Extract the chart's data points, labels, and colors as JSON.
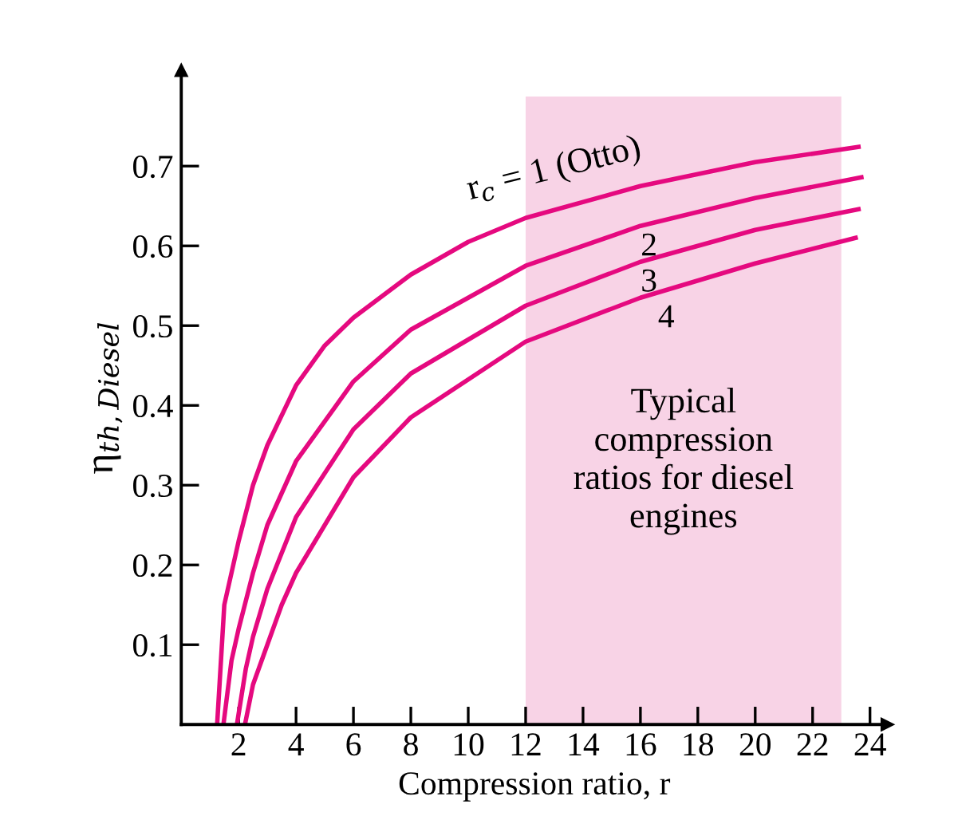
{
  "chart_data": {
    "type": "line",
    "xlabel": "Compression ratio, r",
    "ylabel": "η$_{th,Diesel}$",
    "xlim": [
      0,
      24.6
    ],
    "ylim": [
      0,
      0.82
    ],
    "xticks": [
      2,
      4,
      6,
      8,
      10,
      12,
      14,
      16,
      18,
      20,
      22,
      24
    ],
    "yticks": [
      0.1,
      0.2,
      0.3,
      0.4,
      0.5,
      0.6,
      0.7
    ],
    "grid": false,
    "legend": false,
    "marker": "none",
    "line_style": "solid",
    "bands": [
      {
        "axis": "x",
        "from": 12,
        "to": 23,
        "label": "Typical\ncompression\nratios for diesel\nengines",
        "color": "#f8d3e6"
      }
    ],
    "series": [
      {
        "name": "r$_{c}$ = 1 (Otto)",
        "color": "#e5097f",
        "x": [
          1.25,
          1.5,
          2,
          2.5,
          3,
          4,
          5,
          6,
          8,
          10,
          12,
          16,
          20,
          23.6
        ],
        "values": [
          0,
          0.15,
          0.23,
          0.3,
          0.35,
          0.425,
          0.475,
          0.51,
          0.564,
          0.605,
          0.635,
          0.675,
          0.705,
          0.724
        ]
      },
      {
        "name": "2",
        "color": "#e5097f",
        "x": [
          1.47,
          1.75,
          2,
          2.5,
          3,
          4,
          6,
          8,
          12,
          16,
          20,
          23.7
        ],
        "values": [
          0,
          0.08,
          0.12,
          0.19,
          0.25,
          0.33,
          0.43,
          0.495,
          0.575,
          0.625,
          0.66,
          0.686
        ]
      },
      {
        "name": "3",
        "color": "#e5097f",
        "x": [
          1.94,
          2.25,
          2.5,
          3,
          4,
          6,
          8,
          12,
          16,
          20,
          23.6
        ],
        "values": [
          0,
          0.07,
          0.11,
          0.17,
          0.26,
          0.37,
          0.44,
          0.525,
          0.58,
          0.62,
          0.646
        ]
      },
      {
        "name": "4",
        "color": "#e5097f",
        "x": [
          2.22,
          2.5,
          3,
          3.5,
          4,
          6,
          8,
          12,
          16,
          20,
          23.5
        ],
        "values": [
          0,
          0.05,
          0.1,
          0.15,
          0.19,
          0.31,
          0.385,
          0.48,
          0.535,
          0.578,
          0.61
        ]
      }
    ]
  }
}
